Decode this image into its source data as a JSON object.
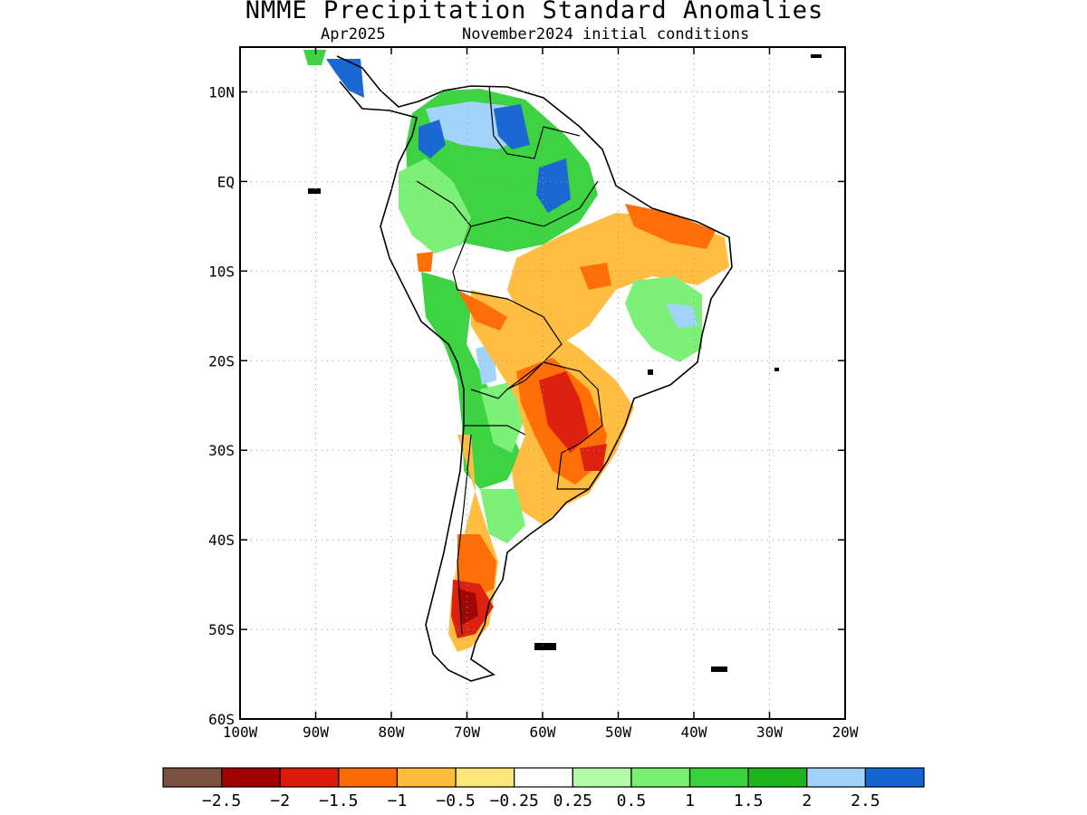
{
  "title": "NMME Precipitation Standard Anomalies",
  "subtitle_left": "Apr2025",
  "subtitle_right": "November2024 initial conditions",
  "map": {
    "lon_range": [
      -100,
      -20
    ],
    "lat_range": [
      -60,
      15
    ],
    "y_ticks": [
      {
        "lat": 10,
        "label": "10N"
      },
      {
        "lat": 0,
        "label": "EQ"
      },
      {
        "lat": -10,
        "label": "10S"
      },
      {
        "lat": -20,
        "label": "20S"
      },
      {
        "lat": -30,
        "label": "30S"
      },
      {
        "lat": -40,
        "label": "40S"
      },
      {
        "lat": -50,
        "label": "50S"
      },
      {
        "lat": -60,
        "label": "60S"
      }
    ],
    "x_ticks": [
      {
        "lon": -100,
        "label": "100W"
      },
      {
        "lon": -90,
        "label": "90W"
      },
      {
        "lon": -80,
        "label": "80W"
      },
      {
        "lon": -70,
        "label": "70W"
      },
      {
        "lon": -60,
        "label": "60W"
      },
      {
        "lon": -50,
        "label": "50W"
      },
      {
        "lon": -40,
        "label": "40W"
      },
      {
        "lon": -30,
        "label": "30W"
      },
      {
        "lon": -20,
        "label": "20W"
      }
    ],
    "grid": "dotted"
  },
  "colorbar": {
    "colors": [
      "#7a5040",
      "#a00000",
      "#dc1a0a",
      "#ff6a00",
      "#ffbb3c",
      "#ffe678",
      "#ffffff",
      "#b4faaa",
      "#78f073",
      "#37d23c",
      "#1eb41e",
      "#a0d2fa",
      "#1464d2"
    ],
    "labels": [
      "−2.5",
      "−2",
      "−1.5",
      "−1",
      "−0.5",
      "−0.25",
      "0.25",
      "0.5",
      "1",
      "1.5",
      "2",
      "2.5"
    ]
  }
}
